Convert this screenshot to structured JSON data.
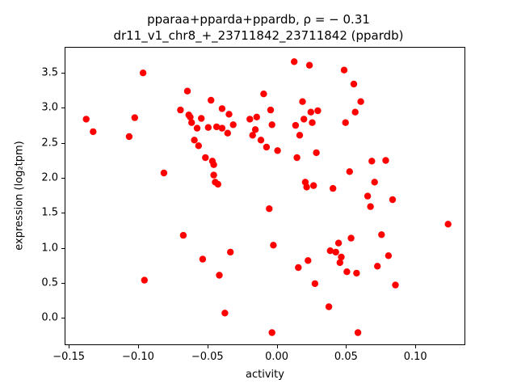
{
  "title": {
    "line1": "pparaa+pparda+ppardb, ρ = − 0.31",
    "line2": "dr11_v1_chr8_+_23711842_23711842 (ppardb)"
  },
  "chart_data": {
    "type": "scatter",
    "title": "pparaa+pparda+ppardb, ρ = − 0.31",
    "subtitle": "dr11_v1_chr8_+_23711842_23711842 (ppardb)",
    "xlabel": "activity",
    "ylabel": "expression (log₂tpm)",
    "correlation_rho": -0.31,
    "marker_color": "#ff0000",
    "grid": false,
    "legend": "none",
    "xlim": [
      -0.153,
      0.136
    ],
    "ylim": [
      -0.39,
      3.87
    ],
    "xtick_values": [
      -0.15,
      -0.1,
      -0.05,
      0.0,
      0.05,
      0.1
    ],
    "xtick_labels": [
      "−0.15",
      "−0.10",
      "−0.05",
      "0.00",
      "0.05",
      "0.10"
    ],
    "ytick_values": [
      0.0,
      0.5,
      1.0,
      1.5,
      2.0,
      2.5,
      3.0,
      3.5
    ],
    "ytick_labels": [
      "0.0",
      "0.5",
      "1.0",
      "1.5",
      "2.0",
      "2.5",
      "3.0",
      "3.5"
    ],
    "points": [
      [
        -0.138,
        2.85
      ],
      [
        -0.133,
        2.67
      ],
      [
        -0.107,
        2.6
      ],
      [
        -0.103,
        2.87
      ],
      [
        -0.097,
        3.51
      ],
      [
        -0.096,
        0.55
      ],
      [
        -0.082,
        2.08
      ],
      [
        -0.07,
        2.98
      ],
      [
        -0.068,
        1.19
      ],
      [
        -0.065,
        3.25
      ],
      [
        -0.064,
        2.91
      ],
      [
        -0.063,
        2.88
      ],
      [
        -0.062,
        2.8
      ],
      [
        -0.06,
        2.55
      ],
      [
        -0.058,
        2.72
      ],
      [
        -0.057,
        2.47
      ],
      [
        -0.055,
        2.86
      ],
      [
        -0.054,
        0.85
      ],
      [
        -0.052,
        2.3
      ],
      [
        -0.05,
        2.73
      ],
      [
        -0.048,
        3.12
      ],
      [
        -0.047,
        2.25
      ],
      [
        -0.046,
        2.2
      ],
      [
        -0.046,
        2.05
      ],
      [
        -0.045,
        1.95
      ],
      [
        -0.044,
        2.74
      ],
      [
        -0.043,
        1.92
      ],
      [
        -0.042,
        0.62
      ],
      [
        -0.04,
        3.0
      ],
      [
        -0.04,
        2.72
      ],
      [
        -0.038,
        0.08
      ],
      [
        -0.036,
        2.65
      ],
      [
        -0.035,
        2.92
      ],
      [
        -0.034,
        0.95
      ],
      [
        -0.032,
        2.77
      ],
      [
        -0.02,
        2.85
      ],
      [
        -0.018,
        2.62
      ],
      [
        -0.016,
        2.7
      ],
      [
        -0.015,
        2.88
      ],
      [
        -0.012,
        2.55
      ],
      [
        -0.01,
        3.21
      ],
      [
        -0.008,
        2.45
      ],
      [
        -0.006,
        1.57
      ],
      [
        -0.005,
        2.98
      ],
      [
        -0.004,
        2.77
      ],
      [
        -0.004,
        -0.2
      ],
      [
        -0.003,
        1.05
      ],
      [
        0.0,
        2.4
      ],
      [
        0.012,
        3.67
      ],
      [
        0.013,
        2.76
      ],
      [
        0.014,
        2.3
      ],
      [
        0.015,
        0.73
      ],
      [
        0.016,
        2.62
      ],
      [
        0.018,
        3.1
      ],
      [
        0.019,
        2.85
      ],
      [
        0.02,
        1.95
      ],
      [
        0.021,
        1.88
      ],
      [
        0.022,
        0.83
      ],
      [
        0.023,
        3.62
      ],
      [
        0.024,
        2.95
      ],
      [
        0.025,
        2.8
      ],
      [
        0.026,
        1.9
      ],
      [
        0.027,
        0.5
      ],
      [
        0.028,
        2.37
      ],
      [
        0.029,
        2.97
      ],
      [
        0.037,
        0.17
      ],
      [
        0.038,
        0.97
      ],
      [
        0.04,
        1.86
      ],
      [
        0.042,
        0.95
      ],
      [
        0.044,
        1.08
      ],
      [
        0.045,
        0.8
      ],
      [
        0.046,
        0.88
      ],
      [
        0.048,
        3.55
      ],
      [
        0.049,
        2.8
      ],
      [
        0.05,
        0.67
      ],
      [
        0.052,
        2.1
      ],
      [
        0.053,
        1.15
      ],
      [
        0.055,
        3.35
      ],
      [
        0.056,
        2.95
      ],
      [
        0.057,
        0.65
      ],
      [
        0.058,
        -0.2
      ],
      [
        0.06,
        3.1
      ],
      [
        0.065,
        1.75
      ],
      [
        0.067,
        1.6
      ],
      [
        0.068,
        2.25
      ],
      [
        0.07,
        1.95
      ],
      [
        0.072,
        0.75
      ],
      [
        0.075,
        1.2
      ],
      [
        0.078,
        2.26
      ],
      [
        0.08,
        0.9
      ],
      [
        0.083,
        1.7
      ],
      [
        0.085,
        0.48
      ],
      [
        0.123,
        1.35
      ]
    ]
  }
}
